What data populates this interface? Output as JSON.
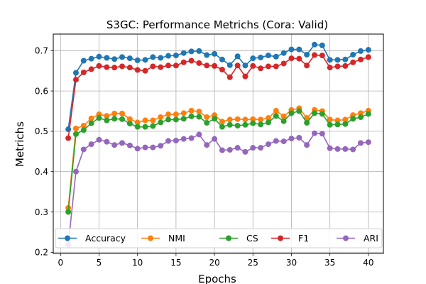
{
  "chart_data": {
    "type": "line",
    "title": "S3GC: Performance Metrichs (Cora: Valid)",
    "xlabel": "Epochs",
    "ylabel": "Metrichs",
    "xlim": [
      -0.95,
      41.95
    ],
    "ylim": [
      0.197,
      0.741
    ],
    "xticks": [
      0,
      5,
      10,
      15,
      20,
      25,
      30,
      35,
      40
    ],
    "yticks": [
      0.2,
      0.3,
      0.4,
      0.5,
      0.6,
      0.7
    ],
    "ytick_labels": [
      "0.2",
      "0.3",
      "0.4",
      "0.5",
      "0.6",
      "0.7"
    ],
    "grid": true,
    "legend_position": "bottom, single row",
    "x": [
      1,
      2,
      3,
      4,
      5,
      6,
      7,
      8,
      9,
      10,
      11,
      12,
      13,
      14,
      15,
      16,
      17,
      18,
      19,
      20,
      21,
      22,
      23,
      24,
      25,
      26,
      27,
      28,
      29,
      30,
      31,
      32,
      33,
      34,
      35,
      36,
      37,
      38,
      39,
      40
    ],
    "series": [
      {
        "name": "Accuracy",
        "color": "#1f77b4",
        "values": [
          0.505,
          0.645,
          0.675,
          0.68,
          0.685,
          0.682,
          0.679,
          0.684,
          0.681,
          0.676,
          0.677,
          0.684,
          0.682,
          0.687,
          0.688,
          0.694,
          0.698,
          0.699,
          0.689,
          0.692,
          0.678,
          0.664,
          0.686,
          0.663,
          0.681,
          0.683,
          0.688,
          0.685,
          0.694,
          0.703,
          0.703,
          0.69,
          0.715,
          0.713,
          0.677,
          0.677,
          0.678,
          0.69,
          0.699,
          0.702
        ]
      },
      {
        "name": "NMI",
        "color": "#ff7f0e",
        "values": [
          0.31,
          0.507,
          0.514,
          0.532,
          0.542,
          0.538,
          0.544,
          0.544,
          0.53,
          0.522,
          0.527,
          0.527,
          0.535,
          0.542,
          0.542,
          0.545,
          0.551,
          0.549,
          0.535,
          0.54,
          0.524,
          0.529,
          0.53,
          0.529,
          0.53,
          0.529,
          0.533,
          0.551,
          0.537,
          0.553,
          0.557,
          0.533,
          0.553,
          0.55,
          0.529,
          0.527,
          0.529,
          0.54,
          0.545,
          0.551
        ]
      },
      {
        "name": "CS",
        "color": "#2ca02c",
        "values": [
          0.3,
          0.493,
          0.503,
          0.52,
          0.533,
          0.527,
          0.531,
          0.53,
          0.519,
          0.511,
          0.511,
          0.513,
          0.522,
          0.529,
          0.529,
          0.531,
          0.537,
          0.536,
          0.521,
          0.531,
          0.511,
          0.516,
          0.514,
          0.516,
          0.52,
          0.517,
          0.522,
          0.538,
          0.525,
          0.545,
          0.55,
          0.521,
          0.545,
          0.543,
          0.516,
          0.517,
          0.518,
          0.531,
          0.535,
          0.543
        ]
      },
      {
        "name": "F1",
        "color": "#d62728",
        "values": [
          0.483,
          0.628,
          0.646,
          0.654,
          0.662,
          0.659,
          0.658,
          0.661,
          0.658,
          0.652,
          0.65,
          0.661,
          0.659,
          0.663,
          0.663,
          0.671,
          0.675,
          0.669,
          0.663,
          0.662,
          0.653,
          0.634,
          0.663,
          0.636,
          0.662,
          0.656,
          0.661,
          0.661,
          0.668,
          0.681,
          0.68,
          0.663,
          0.689,
          0.688,
          0.658,
          0.661,
          0.662,
          0.671,
          0.678,
          0.684
        ]
      },
      {
        "name": "ARI",
        "color": "#9467bd",
        "values": [
          0.219,
          0.4,
          0.455,
          0.468,
          0.479,
          0.474,
          0.466,
          0.471,
          0.465,
          0.457,
          0.46,
          0.46,
          0.464,
          0.476,
          0.477,
          0.481,
          0.483,
          0.492,
          0.466,
          0.481,
          0.453,
          0.454,
          0.459,
          0.449,
          0.459,
          0.459,
          0.468,
          0.476,
          0.475,
          0.482,
          0.484,
          0.466,
          0.495,
          0.494,
          0.458,
          0.456,
          0.456,
          0.455,
          0.471,
          0.473
        ]
      }
    ]
  }
}
